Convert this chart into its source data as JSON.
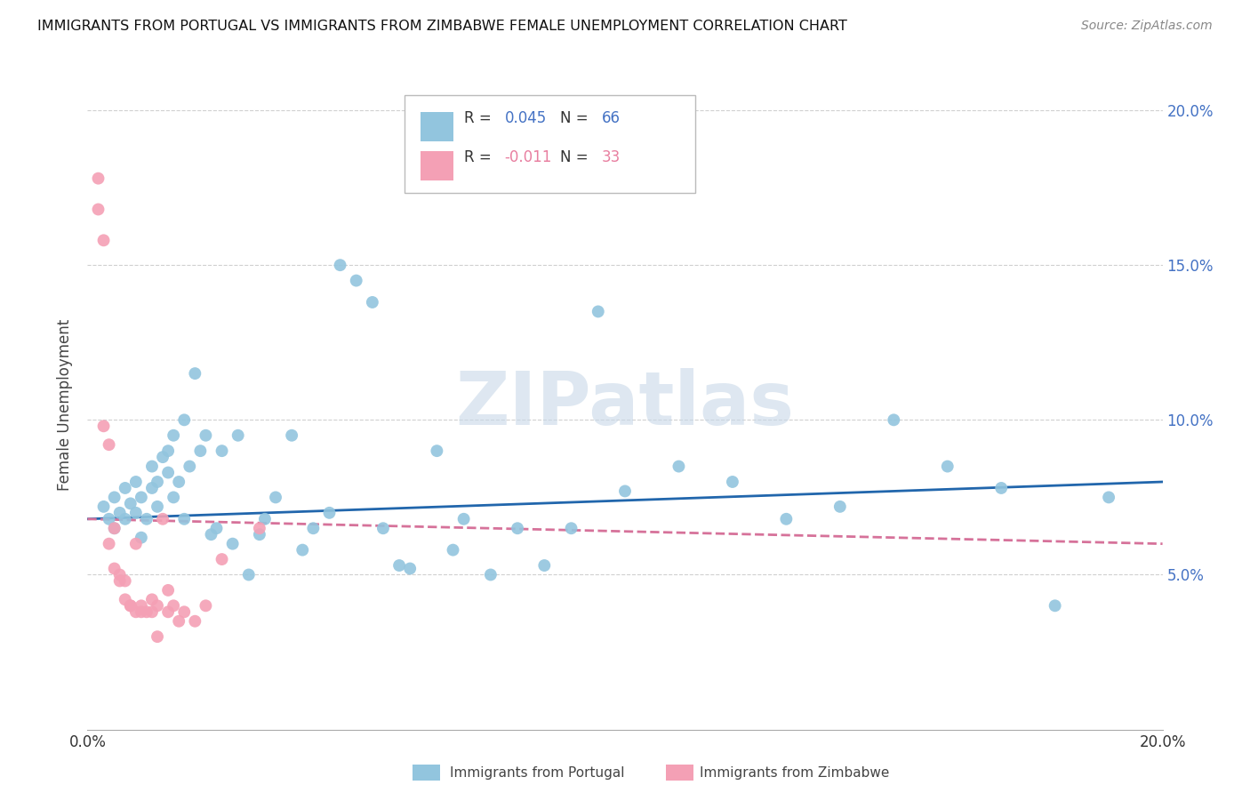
{
  "title": "IMMIGRANTS FROM PORTUGAL VS IMMIGRANTS FROM ZIMBABWE FEMALE UNEMPLOYMENT CORRELATION CHART",
  "source": "Source: ZipAtlas.com",
  "ylabel": "Female Unemployment",
  "xlim": [
    0.0,
    0.2
  ],
  "ylim": [
    0.0,
    0.21
  ],
  "ytick_vals": [
    0.05,
    0.1,
    0.15,
    0.2
  ],
  "ytick_labels": [
    "5.0%",
    "10.0%",
    "15.0%",
    "20.0%"
  ],
  "xtick_vals": [
    0.0,
    0.2
  ],
  "xtick_labels": [
    "0.0%",
    "20.0%"
  ],
  "legend1_label": "R = ",
  "legend1_r": "0.045",
  "legend1_n_label": "N = ",
  "legend1_n": "66",
  "legend2_label": "R = ",
  "legend2_r": "-0.011",
  "legend2_n_label": "N = ",
  "legend2_n": "33",
  "color_portugal": "#92c5de",
  "color_zimbabwe": "#f4a0b5",
  "color_portugal_line": "#2166ac",
  "color_zimbabwe_line": "#d6729a",
  "color_legend_r1": "#4472c4",
  "color_legend_n1": "#4472c4",
  "color_legend_r2": "#e87fa0",
  "color_legend_n2": "#e87fa0",
  "color_ytick": "#4472c4",
  "portugal_x": [
    0.003,
    0.004,
    0.005,
    0.005,
    0.006,
    0.007,
    0.007,
    0.008,
    0.009,
    0.009,
    0.01,
    0.01,
    0.011,
    0.012,
    0.012,
    0.013,
    0.013,
    0.014,
    0.015,
    0.015,
    0.016,
    0.016,
    0.017,
    0.018,
    0.018,
    0.019,
    0.02,
    0.021,
    0.022,
    0.023,
    0.024,
    0.025,
    0.027,
    0.028,
    0.03,
    0.032,
    0.033,
    0.035,
    0.038,
    0.04,
    0.042,
    0.045,
    0.047,
    0.05,
    0.053,
    0.055,
    0.058,
    0.06,
    0.065,
    0.068,
    0.07,
    0.075,
    0.08,
    0.085,
    0.09,
    0.095,
    0.1,
    0.11,
    0.12,
    0.13,
    0.14,
    0.15,
    0.16,
    0.17,
    0.18,
    0.19
  ],
  "portugal_y": [
    0.072,
    0.068,
    0.075,
    0.065,
    0.07,
    0.078,
    0.068,
    0.073,
    0.08,
    0.07,
    0.075,
    0.062,
    0.068,
    0.085,
    0.078,
    0.08,
    0.072,
    0.088,
    0.083,
    0.09,
    0.075,
    0.095,
    0.08,
    0.1,
    0.068,
    0.085,
    0.115,
    0.09,
    0.095,
    0.063,
    0.065,
    0.09,
    0.06,
    0.095,
    0.05,
    0.063,
    0.068,
    0.075,
    0.095,
    0.058,
    0.065,
    0.07,
    0.15,
    0.145,
    0.138,
    0.065,
    0.053,
    0.052,
    0.09,
    0.058,
    0.068,
    0.05,
    0.065,
    0.053,
    0.065,
    0.135,
    0.077,
    0.085,
    0.08,
    0.068,
    0.072,
    0.1,
    0.085,
    0.078,
    0.04,
    0.075
  ],
  "zimbabwe_x": [
    0.002,
    0.002,
    0.003,
    0.003,
    0.004,
    0.004,
    0.005,
    0.005,
    0.006,
    0.006,
    0.007,
    0.007,
    0.008,
    0.008,
    0.009,
    0.009,
    0.01,
    0.01,
    0.011,
    0.012,
    0.012,
    0.013,
    0.013,
    0.014,
    0.015,
    0.015,
    0.016,
    0.017,
    0.018,
    0.02,
    0.022,
    0.025,
    0.032
  ],
  "zimbabwe_y": [
    0.178,
    0.168,
    0.158,
    0.098,
    0.092,
    0.06,
    0.065,
    0.052,
    0.05,
    0.048,
    0.048,
    0.042,
    0.04,
    0.04,
    0.038,
    0.06,
    0.038,
    0.04,
    0.038,
    0.042,
    0.038,
    0.04,
    0.03,
    0.068,
    0.045,
    0.038,
    0.04,
    0.035,
    0.038,
    0.035,
    0.04,
    0.055,
    0.065
  ],
  "portugal_trend_x": [
    0.0,
    0.2
  ],
  "portugal_trend_y": [
    0.068,
    0.08
  ],
  "zimbabwe_trend_x": [
    0.0,
    0.2
  ],
  "zimbabwe_trend_y": [
    0.068,
    0.06
  ],
  "watermark": "ZIPatlas",
  "background_color": "#ffffff",
  "grid_color": "#d0d0d0"
}
